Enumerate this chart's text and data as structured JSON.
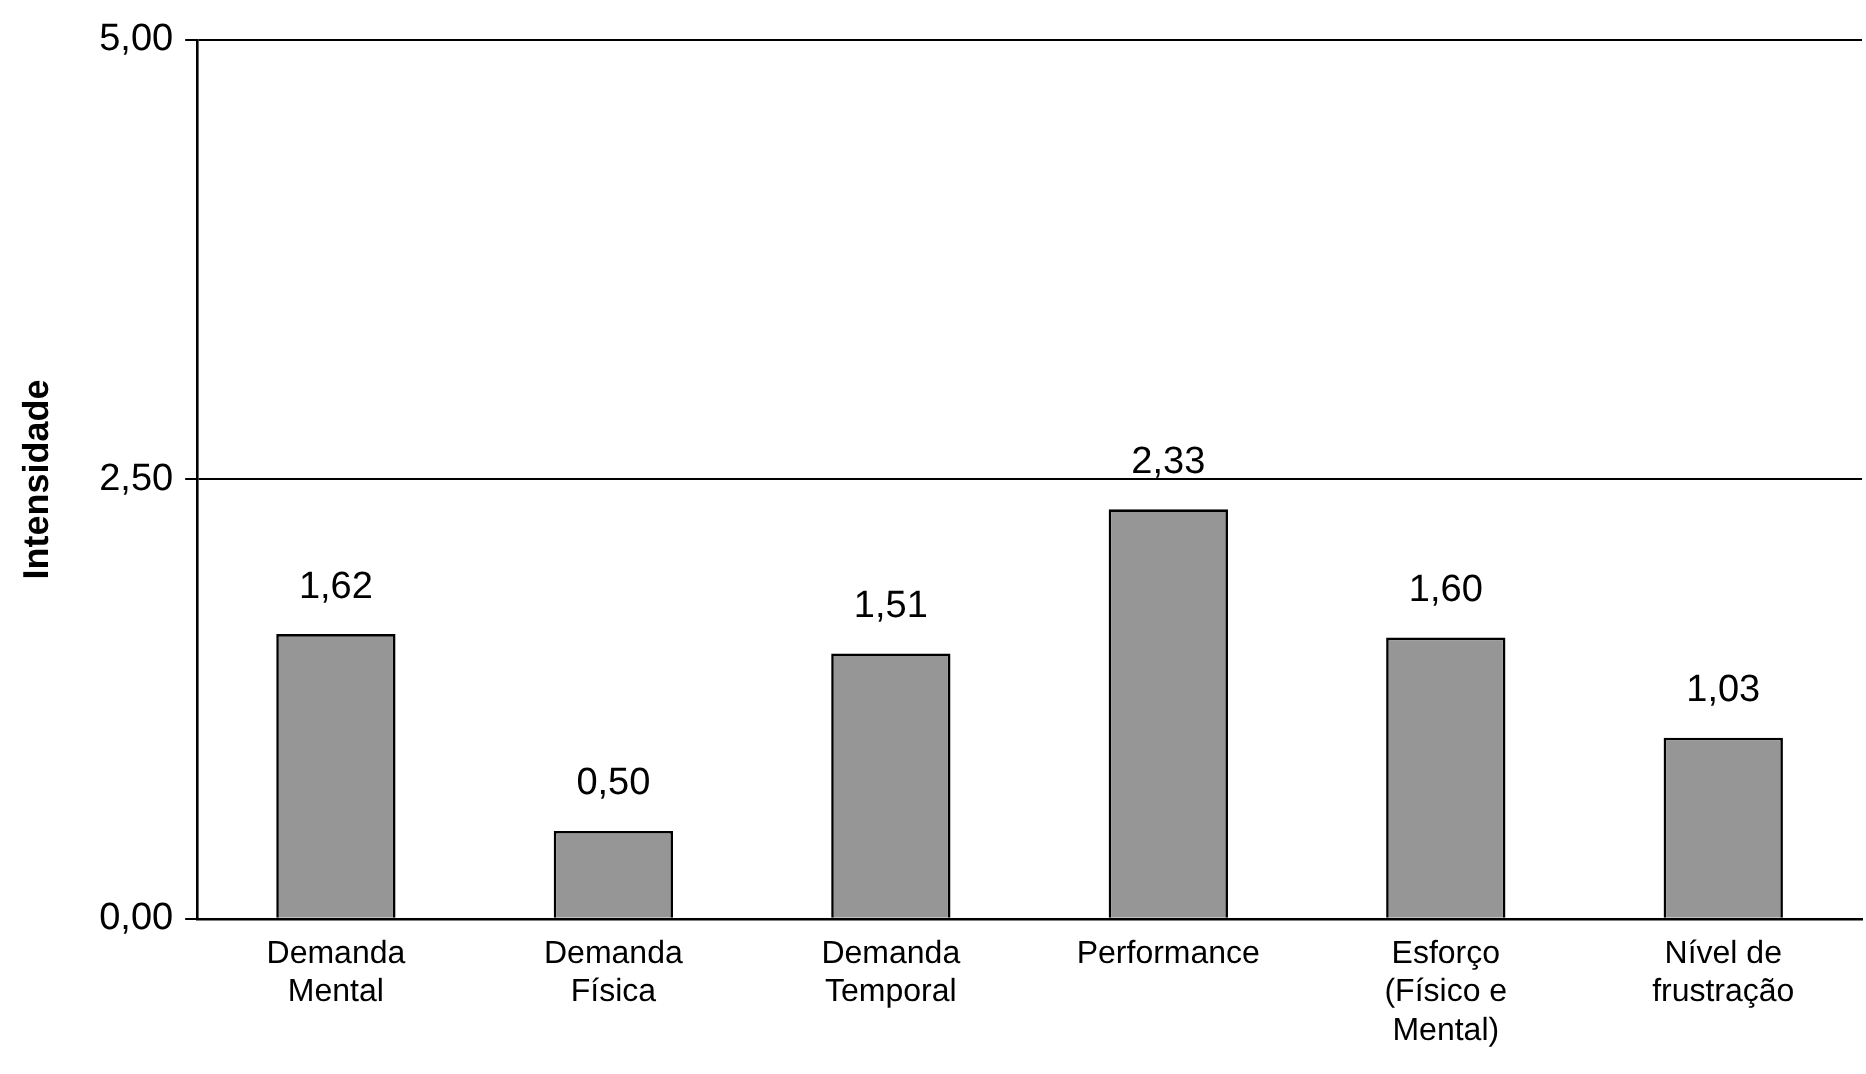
{
  "chart_data": {
    "type": "bar",
    "ylabel": "Intensidade",
    "categories": [
      "Demanda Mental",
      "Demanda Física",
      "Demanda Temporal",
      "Performance",
      "Esforço (Físico e Mental)",
      "Nível de frustração"
    ],
    "values": [
      1.62,
      0.5,
      1.51,
      2.33,
      1.6,
      1.03
    ],
    "value_labels": [
      "1,62",
      "0,50",
      "1,51",
      "2,33",
      "1,60",
      "1,03"
    ],
    "color": "#969696",
    "ylim": [
      0,
      5
    ],
    "yticks": [
      {
        "value": 0,
        "label": "0,00"
      },
      {
        "value": 2.5,
        "label": "2,50"
      },
      {
        "value": 5,
        "label": "5,00"
      }
    ],
    "grid": "y",
    "legend": false
  }
}
